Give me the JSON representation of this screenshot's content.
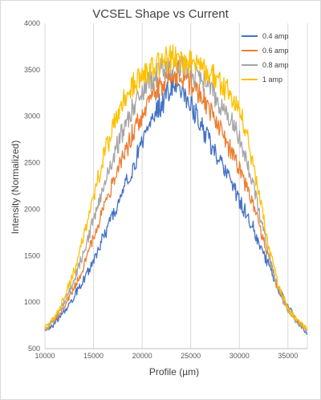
{
  "chart_data": {
    "type": "line",
    "title": "VCSEL Shape vs Current",
    "xlabel": "Profile (µm)",
    "ylabel": "Intensity (Normalized)",
    "xlim": [
      10000,
      37000
    ],
    "ylim": [
      500,
      4000
    ],
    "x_ticks": [
      10000,
      15000,
      20000,
      25000,
      30000,
      35000
    ],
    "y_ticks": [
      500,
      1000,
      1500,
      2000,
      2500,
      3000,
      3500,
      4000
    ],
    "x_tick_labels": [
      "10000",
      "15000",
      "20000",
      "25000",
      "30000",
      "35000"
    ],
    "y_tick_labels": [
      "500",
      "1000",
      "1500",
      "2000",
      "2500",
      "3000",
      "3500",
      "4000"
    ],
    "grid": "vertical",
    "legend_position": "top-right",
    "series": [
      {
        "name": "0.4 amp",
        "color": "#4472C4",
        "x": [
          10000,
          11000,
          12000,
          13000,
          14000,
          15000,
          16000,
          17000,
          18000,
          19000,
          20000,
          21000,
          22000,
          23000,
          23500,
          24000,
          25000,
          26000,
          27000,
          28000,
          29000,
          30000,
          31000,
          32000,
          33000,
          34000,
          35000,
          36000,
          37000
        ],
        "y": [
          680,
          770,
          900,
          1060,
          1250,
          1460,
          1690,
          1930,
          2180,
          2440,
          2700,
          2950,
          3150,
          3300,
          3320,
          3280,
          3120,
          2920,
          2700,
          2500,
          2300,
          2100,
          1900,
          1650,
          1400,
          1150,
          950,
          800,
          650
        ]
      },
      {
        "name": "0.6 amp",
        "color": "#ED7D31",
        "x": [
          10000,
          11000,
          12000,
          13000,
          14000,
          15000,
          16000,
          17000,
          18000,
          19000,
          20000,
          21000,
          22000,
          23000,
          23500,
          24000,
          25000,
          26000,
          27000,
          28000,
          29000,
          30000,
          31000,
          32000,
          33000,
          34000,
          35000,
          36000,
          37000
        ],
        "y": [
          700,
          800,
          950,
          1150,
          1400,
          1700,
          2000,
          2280,
          2550,
          2800,
          3030,
          3220,
          3360,
          3440,
          3460,
          3440,
          3360,
          3220,
          3050,
          2850,
          2650,
          2430,
          2180,
          1850,
          1480,
          1140,
          920,
          790,
          700
        ]
      },
      {
        "name": "0.8 amp",
        "color": "#A5A5A5",
        "x": [
          10000,
          11000,
          12000,
          13000,
          14000,
          15000,
          16000,
          17000,
          18000,
          19000,
          20000,
          21000,
          22000,
          23000,
          23500,
          24000,
          25000,
          26000,
          27000,
          28000,
          29000,
          30000,
          31000,
          32000,
          33000,
          34000,
          35000,
          36000,
          37000
        ],
        "y": [
          700,
          820,
          990,
          1230,
          1550,
          1900,
          2250,
          2560,
          2840,
          3080,
          3270,
          3400,
          3480,
          3520,
          3530,
          3520,
          3480,
          3400,
          3300,
          3160,
          2990,
          2780,
          2450,
          2000,
          1520,
          1140,
          910,
          780,
          700
        ]
      },
      {
        "name": "1 amp",
        "color": "#FFC000",
        "x": [
          10000,
          11000,
          12000,
          13000,
          14000,
          15000,
          16000,
          17000,
          18000,
          19000,
          20000,
          21000,
          22000,
          23000,
          23500,
          24000,
          25000,
          26000,
          27000,
          28000,
          29000,
          30000,
          31000,
          32000,
          33000,
          34000,
          35000,
          36000,
          37000
        ],
        "y": [
          710,
          840,
          1040,
          1330,
          1700,
          2120,
          2550,
          2880,
          3140,
          3320,
          3440,
          3520,
          3580,
          3610,
          3620,
          3610,
          3580,
          3530,
          3460,
          3370,
          3250,
          3060,
          2680,
          2160,
          1600,
          1180,
          930,
          790,
          720
        ]
      }
    ]
  }
}
